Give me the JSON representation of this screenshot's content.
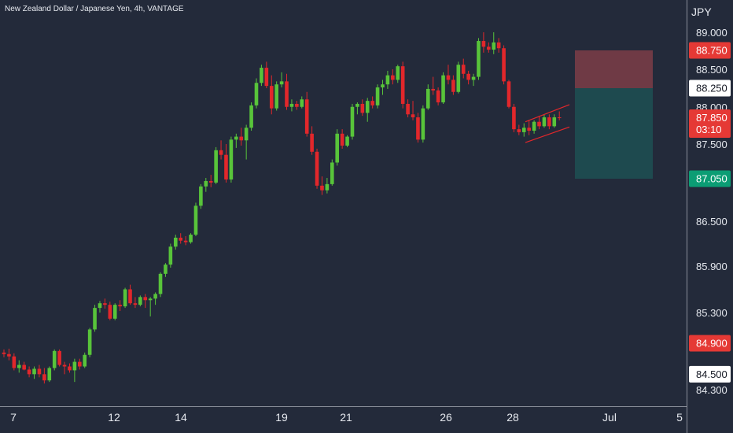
{
  "chart_data": {
    "type": "candlestick",
    "title": "New Zealand Dollar / Japanese Yen, 4h, VANTAGE",
    "currency": "JPY",
    "y_tick_labels": [
      "89.000",
      "88.500",
      "88.000",
      "87.500",
      "86.500",
      "85.900",
      "85.300",
      "84.300"
    ],
    "x_tick_labels": [
      "7",
      "12",
      "14",
      "19",
      "21",
      "26",
      "28",
      "Jul",
      "5"
    ],
    "price_tags": [
      {
        "label": "88.750",
        "value": 88.75,
        "color": "#e53935",
        "text_color": "#ffffff"
      },
      {
        "label": "88.250",
        "value": 88.25,
        "color": "#ffffff",
        "text_color": "#131722"
      },
      {
        "label": "87.850",
        "value": 87.85,
        "color": "#e53935",
        "text_color": "#ffffff",
        "sub": "03:10"
      },
      {
        "label": "87.050",
        "value": 87.05,
        "color": "#0b9d74",
        "text_color": "#ffffff"
      },
      {
        "label": "84.900",
        "value": 84.9,
        "color": "#e53935",
        "text_color": "#ffffff"
      },
      {
        "label": "84.500",
        "value": 84.5,
        "color": "#ffffff",
        "text_color": "#131722"
      }
    ],
    "position_zones": [
      {
        "name": "stop",
        "from": 88.25,
        "to": 88.75,
        "color": "#6f3a45"
      },
      {
        "name": "target",
        "from": 87.05,
        "to": 88.25,
        "color": "#1e4a4f"
      }
    ],
    "channel": {
      "upper": [
        87.8,
        88.03
      ],
      "lower": [
        87.52,
        87.73
      ]
    },
    "candles": [
      [
        84.78,
        84.82,
        84.72,
        84.76
      ],
      [
        84.76,
        84.83,
        84.68,
        84.73
      ],
      [
        84.73,
        84.77,
        84.55,
        84.58
      ],
      [
        84.58,
        84.68,
        84.52,
        84.62
      ],
      [
        84.62,
        84.66,
        84.55,
        84.56
      ],
      [
        84.56,
        84.6,
        84.46,
        84.5
      ],
      [
        84.5,
        84.6,
        84.44,
        84.57
      ],
      [
        84.57,
        84.62,
        84.46,
        84.5
      ],
      [
        84.5,
        84.58,
        84.38,
        84.42
      ],
      [
        84.42,
        84.6,
        84.4,
        84.58
      ],
      [
        84.58,
        84.82,
        84.55,
        84.8
      ],
      [
        84.8,
        84.82,
        84.6,
        84.62
      ],
      [
        84.62,
        84.66,
        84.5,
        84.6
      ],
      [
        84.6,
        84.64,
        84.52,
        84.55
      ],
      [
        84.55,
        84.7,
        84.4,
        84.66
      ],
      [
        84.66,
        84.7,
        84.56,
        84.6
      ],
      [
        84.6,
        84.78,
        84.58,
        84.75
      ],
      [
        84.75,
        85.1,
        84.72,
        85.08
      ],
      [
        85.08,
        85.4,
        85.05,
        85.36
      ],
      [
        85.36,
        85.45,
        85.3,
        85.42
      ],
      [
        85.42,
        85.48,
        85.35,
        85.4
      ],
      [
        85.4,
        85.44,
        85.2,
        85.22
      ],
      [
        85.22,
        85.42,
        85.2,
        85.4
      ],
      [
        85.4,
        85.46,
        85.32,
        85.38
      ],
      [
        85.38,
        85.62,
        85.36,
        85.6
      ],
      [
        85.6,
        85.66,
        85.4,
        85.42
      ],
      [
        85.42,
        85.5,
        85.36,
        85.4
      ],
      [
        85.4,
        85.52,
        85.38,
        85.5
      ],
      [
        85.5,
        85.54,
        85.36,
        85.46
      ],
      [
        85.46,
        85.5,
        85.25,
        85.48
      ],
      [
        85.48,
        85.56,
        85.4,
        85.54
      ],
      [
        85.54,
        85.82,
        85.5,
        85.8
      ],
      [
        85.8,
        85.94,
        85.76,
        85.92
      ],
      [
        85.92,
        86.2,
        85.88,
        86.16
      ],
      [
        86.16,
        86.32,
        86.12,
        86.28
      ],
      [
        86.28,
        86.34,
        86.2,
        86.24
      ],
      [
        86.24,
        86.3,
        86.18,
        86.22
      ],
      [
        86.22,
        86.34,
        86.2,
        86.32
      ],
      [
        86.32,
        86.74,
        86.3,
        86.7
      ],
      [
        86.7,
        86.98,
        86.66,
        86.95
      ],
      [
        86.95,
        87.06,
        86.88,
        87.02
      ],
      [
        87.02,
        87.1,
        86.94,
        87.0
      ],
      [
        87.0,
        87.46,
        86.98,
        87.42
      ],
      [
        87.42,
        87.55,
        87.3,
        87.36
      ],
      [
        87.36,
        87.5,
        87.0,
        87.04
      ],
      [
        87.04,
        87.6,
        87.0,
        87.56
      ],
      [
        87.56,
        87.64,
        87.45,
        87.6
      ],
      [
        87.6,
        87.72,
        87.48,
        87.55
      ],
      [
        87.55,
        87.76,
        87.3,
        87.72
      ],
      [
        87.72,
        88.06,
        87.68,
        88.02
      ],
      [
        88.02,
        88.38,
        87.98,
        88.32
      ],
      [
        88.32,
        88.56,
        88.28,
        88.52
      ],
      [
        88.52,
        88.6,
        88.25,
        88.28
      ],
      [
        88.28,
        88.42,
        87.9,
        87.98
      ],
      [
        87.98,
        88.34,
        87.95,
        88.3
      ],
      [
        88.3,
        88.46,
        88.26,
        88.34
      ],
      [
        88.34,
        88.44,
        87.96,
        88.0
      ],
      [
        88.0,
        88.1,
        87.94,
        88.04
      ],
      [
        88.04,
        88.08,
        87.96,
        88.0
      ],
      [
        88.0,
        88.14,
        87.98,
        88.1
      ],
      [
        88.1,
        88.2,
        87.6,
        87.64
      ],
      [
        87.64,
        87.74,
        87.36,
        87.4
      ],
      [
        87.4,
        87.44,
        86.92,
        86.96
      ],
      [
        86.96,
        87.08,
        86.84,
        86.9
      ],
      [
        86.9,
        87.06,
        86.86,
        86.98
      ],
      [
        86.98,
        87.3,
        86.96,
        87.26
      ],
      [
        87.26,
        87.7,
        87.22,
        87.64
      ],
      [
        87.64,
        87.7,
        87.44,
        87.48
      ],
      [
        87.48,
        87.62,
        87.46,
        87.6
      ],
      [
        87.6,
        88.04,
        87.56,
        88.0
      ],
      [
        88.0,
        88.06,
        87.9,
        88.04
      ],
      [
        88.04,
        88.1,
        87.88,
        87.92
      ],
      [
        87.92,
        88.12,
        87.8,
        88.08
      ],
      [
        88.08,
        88.14,
        87.98,
        88.02
      ],
      [
        88.02,
        88.3,
        87.98,
        88.26
      ],
      [
        88.26,
        88.36,
        88.16,
        88.3
      ],
      [
        88.3,
        88.48,
        88.24,
        88.42
      ],
      [
        88.42,
        88.5,
        88.3,
        88.36
      ],
      [
        88.36,
        88.56,
        88.32,
        88.54
      ],
      [
        88.54,
        88.6,
        87.98,
        88.04
      ],
      [
        88.04,
        88.1,
        87.86,
        87.9
      ],
      [
        87.9,
        88.08,
        87.82,
        87.86
      ],
      [
        87.86,
        87.92,
        87.52,
        87.56
      ],
      [
        87.56,
        88.02,
        87.52,
        87.98
      ],
      [
        87.98,
        88.3,
        87.96,
        88.24
      ],
      [
        88.24,
        88.4,
        88.16,
        88.22
      ],
      [
        88.22,
        88.26,
        88.02,
        88.06
      ],
      [
        88.06,
        88.46,
        88.04,
        88.42
      ],
      [
        88.42,
        88.56,
        88.3,
        88.36
      ],
      [
        88.36,
        88.42,
        88.16,
        88.2
      ],
      [
        88.2,
        88.6,
        88.18,
        88.56
      ],
      [
        88.56,
        88.64,
        88.38,
        88.44
      ],
      [
        88.44,
        88.48,
        88.3,
        88.36
      ],
      [
        88.36,
        88.44,
        88.28,
        88.4
      ],
      [
        88.4,
        88.92,
        88.36,
        88.88
      ],
      [
        88.88,
        89.04,
        88.72,
        88.8
      ],
      [
        88.8,
        88.86,
        88.72,
        88.76
      ],
      [
        88.76,
        89.0,
        88.7,
        88.86
      ],
      [
        88.86,
        88.92,
        88.72,
        88.78
      ],
      [
        88.78,
        88.82,
        88.3,
        88.34
      ],
      [
        88.34,
        88.36,
        87.98,
        88.0
      ],
      [
        88.0,
        88.04,
        87.66,
        87.7
      ],
      [
        87.7,
        87.76,
        87.62,
        87.66
      ],
      [
        87.66,
        87.78,
        87.6,
        87.72
      ],
      [
        87.72,
        87.82,
        87.62,
        87.68
      ],
      [
        87.68,
        87.82,
        87.64,
        87.8
      ],
      [
        87.8,
        87.88,
        87.7,
        87.74
      ],
      [
        87.74,
        87.9,
        87.72,
        87.86
      ],
      [
        87.86,
        87.9,
        87.7,
        87.74
      ],
      [
        87.74,
        87.9,
        87.72,
        87.86
      ],
      [
        87.86,
        87.94,
        87.82,
        87.85
      ]
    ]
  }
}
